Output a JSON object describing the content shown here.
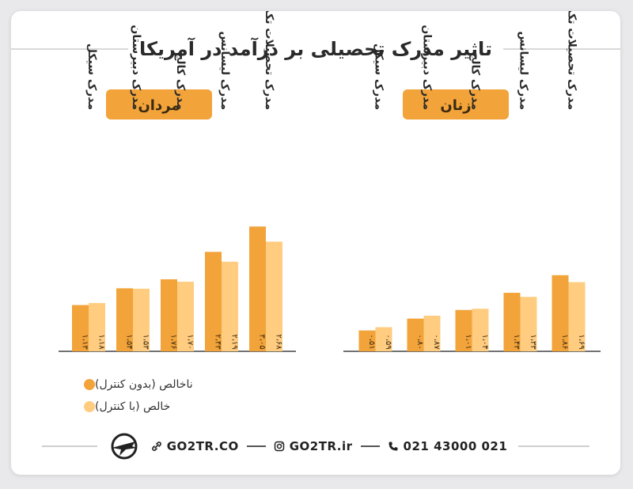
{
  "title": "تاثیر مدرک تحصیلی بر درآمد در آمریکا",
  "colors": {
    "series1": "#F2A33A",
    "series2": "#FFCC80",
    "badge": "#F2A33A",
    "badge_text": "#3a2a10",
    "axis": "#444444"
  },
  "legend": [
    {
      "label": "ناخالص (بدون کنترل)",
      "color": "#F2A33A"
    },
    {
      "label": "خالص (با کنترل)",
      "color": "#FFCC80"
    }
  ],
  "chart_data": {
    "type": "bar",
    "ylim": [
      0,
      3.3
    ],
    "groups": [
      {
        "name": "مردان",
        "categories": [
          "مدرک سیکل",
          "مدرک دبیرستان",
          "مدرک کالج",
          "مدرک لیسانس",
          "مدرک تحصیلات تکمیلی"
        ],
        "series": [
          {
            "values": [
              1.13,
              1.54,
              1.76,
              2.43,
              3.05
            ],
            "labels": [
              "۱،۱۳",
              "۱،۵۴",
              "۱،۷۶",
              "۲،۴۳",
              "۳،۰۵"
            ]
          },
          {
            "values": [
              1.18,
              1.53,
              1.7,
              2.19,
              2.68
            ],
            "labels": [
              "۱،۱۸",
              "۱،۵۳",
              "۱،۷۰",
              "۲،۱۹",
              "۲،۶۸"
            ]
          }
        ]
      },
      {
        "name": "زنان",
        "categories": [
          "مدرک سیکل",
          "مدرک دبیرستان",
          "مدرک کالج",
          "مدرک لیسانس",
          "مدرک تحصیلات تکمیلی"
        ],
        "series": [
          {
            "values": [
              0.51,
              0.8,
              1.01,
              1.43,
              1.86
            ],
            "labels": [
              "۰،۵۱",
              "۰،۸۰",
              "۱،۰۱",
              "۱،۴۳",
              "۱،۸۶"
            ]
          },
          {
            "values": [
              0.59,
              0.87,
              1.04,
              1.33,
              1.69
            ],
            "labels": [
              "۰،۵۹",
              "۰،۸۷",
              "۱،۰۴",
              "۱،۳۳",
              "۱،۶۹"
            ]
          }
        ]
      }
    ]
  },
  "footer": {
    "website": "GO2TR.CO",
    "instagram": "GO2TR.ir",
    "phone": "021 43000 021",
    "logo_icon": "airplane-logo-icon",
    "link_icon": "link-icon",
    "instagram_icon": "instagram-icon",
    "phone_icon": "phone-icon"
  }
}
